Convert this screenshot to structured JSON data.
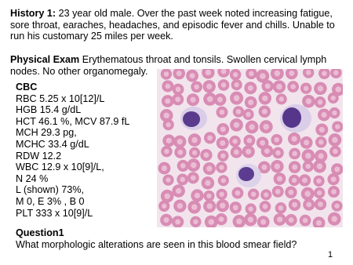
{
  "history": {
    "label": "History 1:",
    "text": "23 year old male. Over the past week noted increasing fatigue, sore throat, earaches, headaches, and episodic fever and chills. Unable to run his customary 25 miles per week."
  },
  "exam": {
    "label": "Physical Exam",
    "text": "Erythematous throat and tonsils. Swollen cervical lymph nodes. No other organomegaly."
  },
  "cbc": {
    "title": "CBC",
    "lines": [
      "RBC 5.25 x 10[12]/L",
      "HGB 15.4 g/dL",
      "HCT 46.1 %, MCV 87.9 fL",
      "MCH 29.3 pg,",
      "MCHC 33.4 g/dL",
      "RDW 12.2",
      "WBC 12.9 x 10[9]/L,",
      "N 24 %",
      "L (shown) 73%,",
      "M 0, E 3% , B 0",
      "PLT 333 x 10[9]/L"
    ]
  },
  "question": {
    "label": "Question1",
    "text": "What morphologic alterations are seen in this blood smear field?"
  },
  "page_number": "1"
}
